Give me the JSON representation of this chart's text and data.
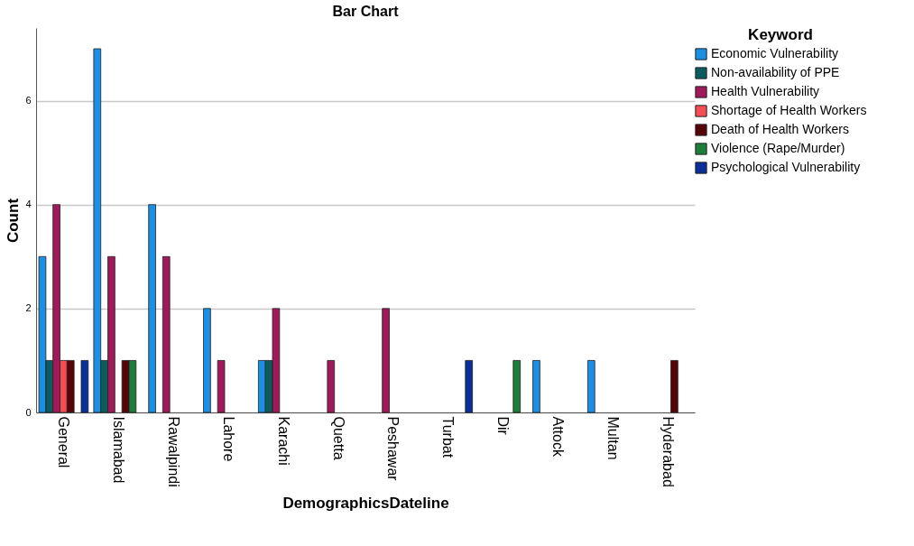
{
  "chart_data": {
    "type": "bar",
    "title": "Bar Chart",
    "xlabel": "DemographicsDateline",
    "ylabel": "Count",
    "legend_title": "Keyword",
    "categories": [
      "General",
      "Islamabad",
      "Rawalpindi",
      "Lahore",
      "Karachi",
      "Quetta",
      "Peshawar",
      "Turbat",
      "Dir",
      "Attock",
      "Multan",
      "Hyderabad"
    ],
    "series": [
      {
        "name": "Economic Vulnerability",
        "color": "#1a8fe3",
        "values": [
          3,
          7,
          4,
          2,
          1,
          null,
          null,
          null,
          null,
          1,
          1,
          null
        ]
      },
      {
        "name": "Non-availability of PPE",
        "color": "#0b5c5c",
        "values": [
          1,
          1,
          null,
          null,
          1,
          null,
          null,
          null,
          null,
          null,
          null,
          null
        ]
      },
      {
        "name": "Health Vulnerability",
        "color": "#a0195a",
        "values": [
          4,
          3,
          3,
          1,
          2,
          1,
          2,
          null,
          null,
          null,
          null,
          null
        ]
      },
      {
        "name": "Shortage of Health Workers",
        "color": "#f64d55",
        "values": [
          1,
          null,
          null,
          null,
          null,
          null,
          null,
          null,
          null,
          null,
          null,
          null
        ]
      },
      {
        "name": "Death of Health Workers",
        "color": "#550509",
        "values": [
          1,
          1,
          null,
          null,
          null,
          null,
          null,
          null,
          null,
          null,
          null,
          1
        ]
      },
      {
        "name": "Violence (Rape/Murder)",
        "color": "#1e7d3a",
        "values": [
          null,
          1,
          null,
          null,
          null,
          null,
          null,
          null,
          1,
          null,
          null,
          null
        ]
      },
      {
        "name": "Psychological Vulnerability",
        "color": "#0a2e9a",
        "values": [
          1,
          null,
          null,
          null,
          null,
          null,
          null,
          1,
          null,
          null,
          null,
          null
        ]
      }
    ],
    "ylim": [
      0,
      7.4
    ],
    "yticks": [
      0,
      2,
      4,
      6
    ],
    "grid": "y",
    "legend": "top right"
  }
}
